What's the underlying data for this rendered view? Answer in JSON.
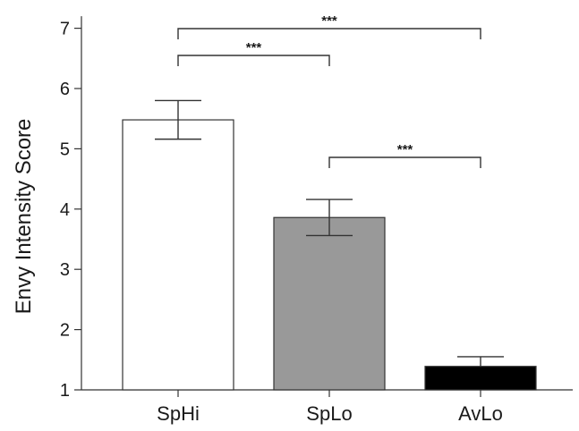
{
  "chart_data": {
    "type": "bar",
    "title": "",
    "xlabel": "",
    "ylabel": "Envy Intensity Score",
    "ylim": [
      1,
      7.2
    ],
    "yticks": [
      1,
      2,
      3,
      4,
      5,
      6,
      7
    ],
    "grid": false,
    "categories": [
      "SpHi",
      "SpLo",
      "AvLo"
    ],
    "values": [
      5.48,
      3.86,
      1.39
    ],
    "error_low": [
      5.16,
      3.56,
      1.39
    ],
    "error_high": [
      5.8,
      4.16,
      1.55
    ],
    "bar_colors": [
      "#ffffff",
      "#999999",
      "#000000"
    ],
    "comparisons": [
      {
        "from": "SpHi",
        "to": "AvLo",
        "label": "***"
      },
      {
        "from": "SpHi",
        "to": "SpLo",
        "label": "***"
      },
      {
        "from": "SpLo",
        "to": "AvLo",
        "label": "***"
      }
    ]
  }
}
